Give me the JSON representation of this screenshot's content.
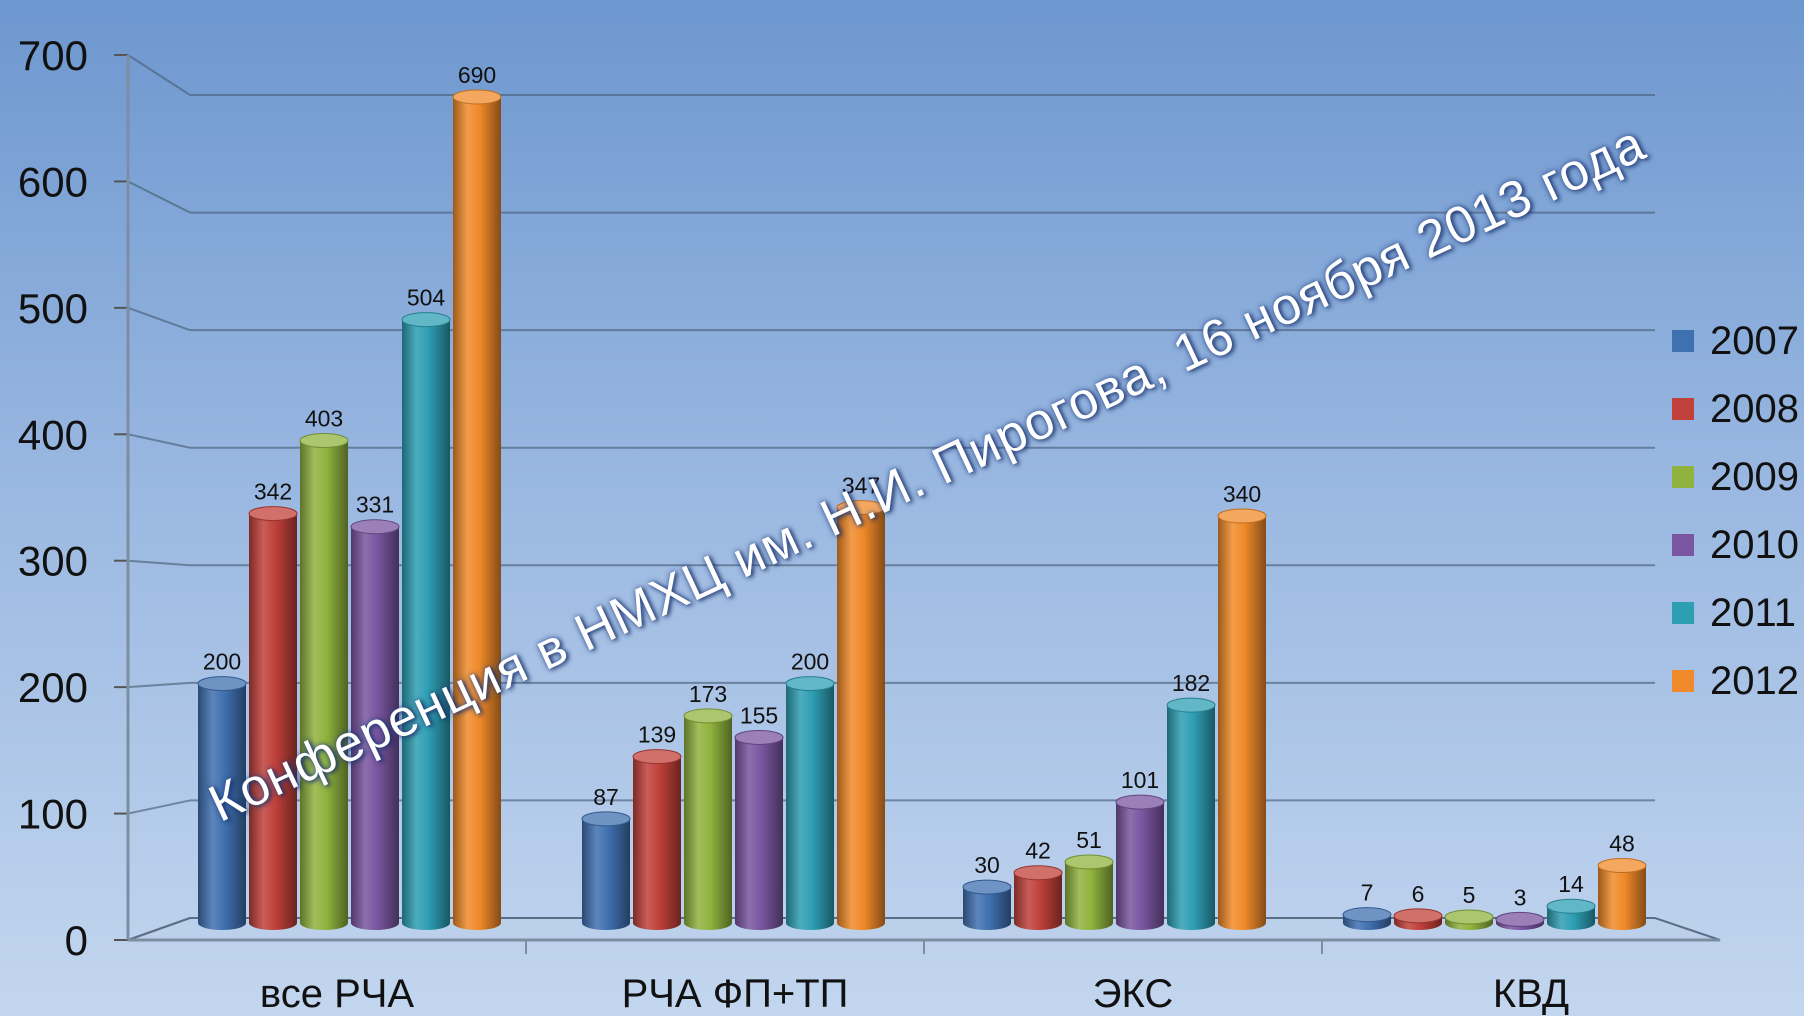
{
  "watermark": "Конференция в НМХЦ им. Н.И. Пирогова, 16 ноября 2013 года",
  "chart_data": {
    "type": "bar",
    "title": "",
    "xlabel": "",
    "ylabel": "",
    "ylim": [
      0,
      700
    ],
    "yticks": [
      "0",
      "100",
      "200",
      "300",
      "400",
      "500",
      "600",
      "700"
    ],
    "grid": true,
    "legend_position": "right",
    "categories": [
      "все РЧА",
      "РЧА ФП+ТП",
      "ЭКС",
      "КВД"
    ],
    "series": [
      {
        "name": "2007",
        "color": "#3f70b0",
        "values": [
          200,
          87,
          30,
          7
        ]
      },
      {
        "name": "2008",
        "color": "#c0403a",
        "values": [
          342,
          139,
          42,
          6
        ]
      },
      {
        "name": "2009",
        "color": "#8fb33e",
        "values": [
          403,
          173,
          51,
          5
        ]
      },
      {
        "name": "2010",
        "color": "#7a55a0",
        "values": [
          331,
          155,
          101,
          3
        ]
      },
      {
        "name": "2011",
        "color": "#2e9fb3",
        "values": [
          504,
          200,
          182,
          14
        ]
      },
      {
        "name": "2012",
        "color": "#f08a2a",
        "values": [
          690,
          347,
          340,
          48
        ]
      }
    ]
  }
}
